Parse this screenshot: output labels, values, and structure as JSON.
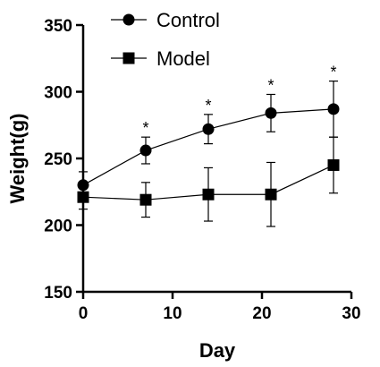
{
  "chart_data": {
    "type": "line",
    "xlabel": "Day",
    "ylabel": "Weight(g)",
    "xlim": [
      0,
      30
    ],
    "ylim": [
      150,
      350
    ],
    "x_ticks": [
      0,
      10,
      20,
      30
    ],
    "y_ticks": [
      150,
      200,
      250,
      300,
      350
    ],
    "x": [
      0,
      7,
      14,
      21,
      28
    ],
    "grid": false,
    "legend_position": "top",
    "series": [
      {
        "name": "Control",
        "marker": "circle",
        "color": "#000000",
        "values": [
          230,
          256,
          272,
          284,
          287
        ],
        "error": [
          10,
          10,
          11,
          14,
          21
        ]
      },
      {
        "name": "Model",
        "marker": "square",
        "color": "#000000",
        "values": [
          221,
          219,
          223,
          223,
          245
        ],
        "error": [
          9,
          13,
          20,
          24,
          21
        ]
      }
    ],
    "annotations": [
      {
        "text": "*",
        "x": 7
      },
      {
        "text": "*",
        "x": 14
      },
      {
        "text": "*",
        "x": 21
      },
      {
        "text": "*",
        "x": 28
      }
    ]
  }
}
